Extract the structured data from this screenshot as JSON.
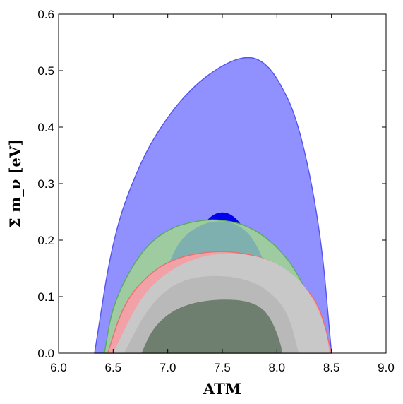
{
  "chart_data": {
    "type": "area",
    "xlabel": "ATM",
    "ylabel": "Σ m_ν [eV]",
    "xlim": [
      6.0,
      9.0
    ],
    "ylim": [
      0.0,
      0.6
    ],
    "xticks": [
      "6.0",
      "6.5",
      "7.0",
      "7.5",
      "8.0",
      "8.5",
      "9.0"
    ],
    "yticks": [
      "0.0",
      "0.1",
      "0.2",
      "0.3",
      "0.4",
      "0.5",
      "0.6"
    ],
    "grid": false,
    "legend": "none",
    "series": [
      {
        "fill": "#9090ff",
        "stroke": "#5555ee",
        "peak": [
          7.7,
          0.525
        ],
        "points": [
          [
            6.33,
            0.0
          ],
          [
            6.5,
            0.21
          ],
          [
            6.75,
            0.34
          ],
          [
            7.0,
            0.42
          ],
          [
            7.25,
            0.475
          ],
          [
            7.5,
            0.51
          ],
          [
            7.7,
            0.525
          ],
          [
            7.85,
            0.52
          ],
          [
            8.0,
            0.49
          ],
          [
            8.2,
            0.41
          ],
          [
            8.4,
            0.22
          ],
          [
            8.5,
            0.0
          ]
        ]
      },
      {
        "fill": "#0000ee",
        "stroke": "#0000ee",
        "peak": [
          7.5,
          0.25
        ],
        "points": [
          [
            7.22,
            0.16
          ],
          [
            7.3,
            0.22
          ],
          [
            7.4,
            0.243
          ],
          [
            7.5,
            0.25
          ],
          [
            7.6,
            0.243
          ],
          [
            7.7,
            0.22
          ],
          [
            7.78,
            0.16
          ]
        ]
      },
      {
        "fill": "#9ecca0",
        "stroke": "#5aaa5c",
        "peak": [
          7.48,
          0.237
        ],
        "points": [
          [
            6.42,
            0.0
          ],
          [
            6.5,
            0.09
          ],
          [
            6.75,
            0.18
          ],
          [
            7.0,
            0.22
          ],
          [
            7.25,
            0.234
          ],
          [
            7.48,
            0.237
          ],
          [
            7.75,
            0.225
          ],
          [
            8.0,
            0.19
          ],
          [
            8.2,
            0.14
          ],
          [
            8.4,
            0.05
          ],
          [
            8.46,
            0.0
          ]
        ]
      },
      {
        "fill": "#7fb0b0",
        "stroke": "none",
        "peak": [
          7.48,
          0.235
        ],
        "points": [
          [
            6.9,
            0.0
          ],
          [
            6.95,
            0.13
          ],
          [
            7.1,
            0.2
          ],
          [
            7.3,
            0.228
          ],
          [
            7.48,
            0.235
          ],
          [
            7.65,
            0.228
          ],
          [
            7.8,
            0.2
          ],
          [
            7.95,
            0.13
          ],
          [
            8.0,
            0.0
          ]
        ]
      },
      {
        "fill": "#f2a2a6",
        "stroke": "#e77070",
        "peak": [
          7.55,
          0.18
        ],
        "points": [
          [
            6.45,
            0.0
          ],
          [
            6.6,
            0.09
          ],
          [
            6.85,
            0.145
          ],
          [
            7.1,
            0.17
          ],
          [
            7.35,
            0.179
          ],
          [
            7.55,
            0.18
          ],
          [
            7.75,
            0.175
          ],
          [
            8.0,
            0.16
          ],
          [
            8.25,
            0.12
          ],
          [
            8.4,
            0.08
          ],
          [
            8.5,
            0.0
          ]
        ]
      },
      {
        "fill": "#c8c8c8",
        "stroke": "none",
        "peak": [
          7.65,
          0.177
        ],
        "points": [
          [
            6.5,
            0.0
          ],
          [
            6.75,
            0.1
          ],
          [
            7.0,
            0.145
          ],
          [
            7.25,
            0.168
          ],
          [
            7.45,
            0.176
          ],
          [
            7.65,
            0.177
          ],
          [
            7.9,
            0.168
          ],
          [
            8.1,
            0.148
          ],
          [
            8.3,
            0.11
          ],
          [
            8.45,
            0.045
          ],
          [
            8.48,
            0.0
          ]
        ]
      },
      {
        "fill": "#b9b9b9",
        "stroke": "none",
        "peak": [
          7.45,
          0.138
        ],
        "points": [
          [
            6.6,
            0.0
          ],
          [
            6.8,
            0.075
          ],
          [
            7.0,
            0.115
          ],
          [
            7.2,
            0.133
          ],
          [
            7.45,
            0.138
          ],
          [
            7.7,
            0.132
          ],
          [
            7.9,
            0.115
          ],
          [
            8.1,
            0.075
          ],
          [
            8.2,
            0.0
          ]
        ]
      },
      {
        "fill": "#6f7f6f",
        "stroke": "none",
        "peak": [
          7.55,
          0.095
        ],
        "points": [
          [
            6.76,
            0.0
          ],
          [
            6.85,
            0.04
          ],
          [
            7.0,
            0.07
          ],
          [
            7.2,
            0.088
          ],
          [
            7.4,
            0.094
          ],
          [
            7.55,
            0.095
          ],
          [
            7.7,
            0.093
          ],
          [
            7.85,
            0.083
          ],
          [
            7.95,
            0.06
          ],
          [
            8.03,
            0.02
          ],
          [
            8.05,
            0.0
          ]
        ]
      }
    ]
  }
}
